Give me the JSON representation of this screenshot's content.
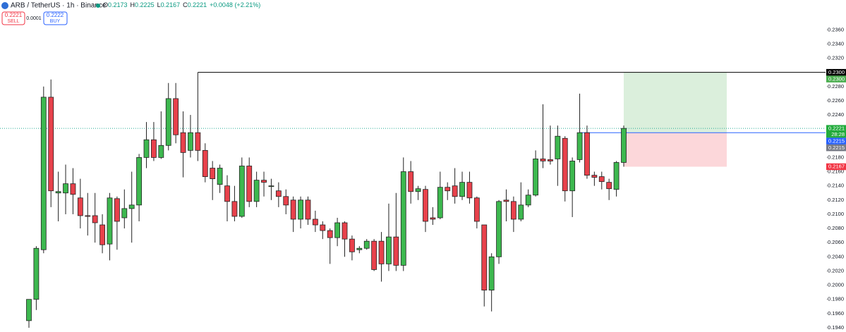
{
  "chart_data": {
    "type": "candlestick",
    "symbol": "ARB / TetherUS · 1h · Binance",
    "readout": [
      [
        "O",
        "0.2173"
      ],
      [
        "H",
        "0.2225"
      ],
      [
        "L",
        "0.2167"
      ],
      [
        "C",
        "0.2221"
      ]
    ],
    "change": "+0.0048 (+2.21%)",
    "sell": {
      "price": "0.2221",
      "label": "SELL"
    },
    "spread": "0.0001",
    "buy": {
      "price": "0.2222",
      "label": "BUY"
    },
    "up_color": "#3db84f",
    "down_color": "#e8414b",
    "open": [
      0.195,
      0.198,
      0.205,
      0.2265,
      0.213,
      0.213,
      0.2143,
      0.2123,
      0.2098,
      0.2098,
      0.2085,
      0.2058,
      0.2122,
      0.2095,
      0.2108,
      0.2113,
      0.218,
      0.2205,
      0.218,
      0.2197,
      0.2263,
      0.2215,
      0.219,
      0.2215,
      0.219,
      0.2165,
      0.2142,
      0.214,
      0.2118,
      0.2097,
      0.2168,
      0.2118,
      0.2148,
      0.214,
      0.2133,
      0.2125,
      0.212,
      0.2093,
      0.212,
      0.2093,
      0.2085,
      0.2077,
      0.2067,
      0.2088,
      0.2065,
      0.205,
      0.2052,
      0.2062,
      0.2062,
      0.203,
      0.2068,
      0.2028,
      0.216,
      0.2132,
      0.2135,
      0.2095,
      0.2095,
      0.2138,
      0.214,
      0.2125,
      0.2145,
      0.2123,
      0.2085,
      0.1993,
      0.204,
      0.212,
      0.2118,
      0.2093,
      0.2113,
      0.2127,
      0.2178,
      0.2177,
      0.2178,
      0.2207,
      0.2133,
      0.2177,
      0.2215,
      0.2155,
      0.2153,
      0.2145,
      0.2135,
      0.2173
    ],
    "high": [
      0.198,
      0.2055,
      0.228,
      0.229,
      0.216,
      0.217,
      0.2165,
      0.215,
      0.213,
      0.213,
      0.21,
      0.213,
      0.2125,
      0.2135,
      0.216,
      0.2185,
      0.223,
      0.223,
      0.2245,
      0.2285,
      0.2285,
      0.2245,
      0.224,
      0.23,
      0.22,
      0.2175,
      0.217,
      0.2155,
      0.214,
      0.218,
      0.218,
      0.216,
      0.216,
      0.215,
      0.2145,
      0.2135,
      0.2125,
      0.2125,
      0.2125,
      0.2105,
      0.209,
      0.208,
      0.2095,
      0.209,
      0.207,
      0.2055,
      0.2065,
      0.2065,
      0.2075,
      0.2115,
      0.213,
      0.218,
      0.2175,
      0.214,
      0.214,
      0.211,
      0.216,
      0.2145,
      0.2165,
      0.216,
      0.216,
      0.2125,
      0.2085,
      0.2045,
      0.212,
      0.2135,
      0.2125,
      0.2145,
      0.2135,
      0.219,
      0.2255,
      0.2225,
      0.2225,
      0.221,
      0.218,
      0.227,
      0.2225,
      0.216,
      0.216,
      0.215,
      0.2175,
      0.2225
    ],
    "low": [
      0.194,
      0.1965,
      0.2045,
      0.211,
      0.209,
      0.21,
      0.21,
      0.208,
      0.207,
      0.206,
      0.2045,
      0.2035,
      0.205,
      0.208,
      0.206,
      0.209,
      0.2165,
      0.2175,
      0.2178,
      0.219,
      0.22,
      0.2152,
      0.218,
      0.2175,
      0.2145,
      0.212,
      0.213,
      0.209,
      0.209,
      0.2095,
      0.211,
      0.211,
      0.2125,
      0.212,
      0.211,
      0.21,
      0.2075,
      0.208,
      0.2085,
      0.2075,
      0.2065,
      0.203,
      0.2055,
      0.204,
      0.2035,
      0.2045,
      0.205,
      0.202,
      0.2005,
      0.202,
      0.202,
      0.202,
      0.2115,
      0.212,
      0.2075,
      0.2085,
      0.2093,
      0.212,
      0.2115,
      0.212,
      0.2115,
      0.208,
      0.197,
      0.1963,
      0.203,
      0.209,
      0.2075,
      0.209,
      0.211,
      0.2125,
      0.2165,
      0.217,
      0.214,
      0.2118,
      0.2096,
      0.2173,
      0.215,
      0.214,
      0.2135,
      0.212,
      0.2125,
      0.2167
    ],
    "close": [
      0.198,
      0.2052,
      0.2265,
      0.2133,
      0.2132,
      0.2143,
      0.2128,
      0.2098,
      0.2097,
      0.2088,
      0.2057,
      0.2123,
      0.209,
      0.2108,
      0.2113,
      0.218,
      0.2205,
      0.218,
      0.2197,
      0.2263,
      0.2212,
      0.2187,
      0.2215,
      0.219,
      0.2153,
      0.215,
      0.2165,
      0.2118,
      0.2097,
      0.2168,
      0.2118,
      0.2148,
      0.2145,
      0.214,
      0.2125,
      0.2113,
      0.2093,
      0.212,
      0.2093,
      0.2085,
      0.2077,
      0.2067,
      0.2088,
      0.2065,
      0.2047,
      0.2052,
      0.2062,
      0.2022,
      0.203,
      0.2068,
      0.2028,
      0.216,
      0.2132,
      0.2136,
      0.209,
      0.2093,
      0.2138,
      0.2133,
      0.2125,
      0.2145,
      0.2123,
      0.209,
      0.1993,
      0.204,
      0.2118,
      0.2118,
      0.2093,
      0.2113,
      0.2127,
      0.2178,
      0.2175,
      0.2175,
      0.221,
      0.2133,
      0.2175,
      0.2215,
      0.2155,
      0.2152,
      0.2146,
      0.2136,
      0.2173,
      0.2221
    ],
    "ylim": [
      0.1934,
      0.2402
    ],
    "yticks": [
      {
        "value": 0.194,
        "label": "0.1940"
      },
      {
        "value": 0.196,
        "label": "0.1960"
      },
      {
        "value": 0.198,
        "label": "0.1980"
      },
      {
        "value": 0.2,
        "label": "0.2000"
      },
      {
        "value": 0.202,
        "label": "0.2020"
      },
      {
        "value": 0.204,
        "label": "0.2040"
      },
      {
        "value": 0.206,
        "label": "0.2060"
      },
      {
        "value": 0.208,
        "label": "0.2080"
      },
      {
        "value": 0.21,
        "label": "0.2100"
      },
      {
        "value": 0.212,
        "label": "0.2120"
      },
      {
        "value": 0.214,
        "label": "0.2140"
      },
      {
        "value": 0.216,
        "label": "0.2160"
      },
      {
        "value": 0.218,
        "label": "0.2180"
      },
      {
        "value": 0.22,
        "label": "0.2200"
      },
      {
        "value": 0.222,
        "label": "0.2220"
      },
      {
        "value": 0.224,
        "label": "0.2240"
      },
      {
        "value": 0.226,
        "label": "0.2260"
      },
      {
        "value": 0.228,
        "label": "0.2280"
      },
      {
        "value": 0.23,
        "label": "0.2300"
      },
      {
        "value": 0.232,
        "label": "0.2320"
      },
      {
        "value": 0.234,
        "label": "0.2340"
      },
      {
        "value": 0.236,
        "label": "0.2360"
      }
    ],
    "price_labels": [
      {
        "value": 0.23,
        "label": "0.2300",
        "color": "#000000"
      },
      {
        "value": 0.23,
        "label": "0.2300",
        "color": "#4caf50"
      },
      {
        "value": 0.2221,
        "label": "0.2221",
        "color": "#22ab3c",
        "countdown": "28:28"
      },
      {
        "value": 0.2215,
        "label": "0.2215",
        "color": "#2962ff"
      },
      {
        "value": 0.2215,
        "label": "0.2215",
        "color": "#787b86"
      },
      {
        "value": 0.2167,
        "label": "0.2167",
        "color": "#f23645"
      }
    ]
  }
}
